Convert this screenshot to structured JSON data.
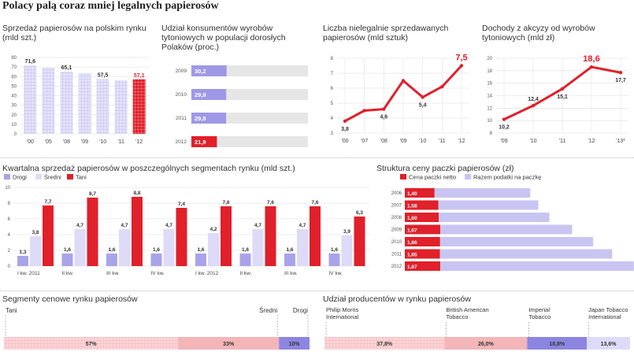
{
  "title": "Polacy palą coraz mniej legalnych papierosów",
  "colors": {
    "red": "#e0202a",
    "lavender": "#c9c5f2",
    "lavender_light": "#dedbf8",
    "grey": "#e6e6e6",
    "dark": "#333333"
  },
  "chart_data": [
    {
      "type": "bar",
      "title": "Sprzedaż papierosów na polskim rynku (mld szt.)",
      "categories": [
        "'00",
        "'05",
        "'08",
        "'09",
        "'10",
        "'11",
        "'12"
      ],
      "tick_labels": [
        "'00",
        "'05",
        "'08",
        "'09",
        "'10",
        "'11",
        "'12"
      ],
      "values": [
        71.6,
        69.1,
        65.1,
        63.5,
        57.5,
        56.0,
        57.1
      ],
      "labels": [
        "71,6",
        "",
        "65,1",
        "",
        "57,5",
        "",
        "57,1"
      ],
      "ylim": [
        0,
        80
      ],
      "yticks": [
        "80",
        "70",
        "60",
        "50",
        "40",
        "30",
        "20",
        "10",
        "0"
      ]
    },
    {
      "type": "bar",
      "title": "Udział konsumentów wyrobów tytoniowych w populacji dorosłych Polaków (proc.)",
      "categories": [
        "2009",
        "2010",
        "2011",
        "2012"
      ],
      "values": [
        30.2,
        29.9,
        29.8,
        21.9
      ],
      "labels": [
        "30,2",
        "29,9",
        "29,8",
        "21,9"
      ],
      "xlim": [
        0,
        100
      ]
    },
    {
      "type": "line",
      "title": "Liczba nielegalnie sprzedawanych papierosów (mld sztuk)",
      "categories": [
        "'00",
        "'07",
        "'08",
        "'09",
        "'10",
        "'11",
        "'12"
      ],
      "values": [
        3.8,
        4.5,
        4.6,
        6.5,
        5.4,
        6.1,
        7.5
      ],
      "labels": [
        "3,8",
        "",
        "4,6",
        "",
        "5,4",
        "",
        "7,5"
      ],
      "ylim": [
        3,
        8
      ],
      "yticks": [
        "8",
        "7",
        "6",
        "5",
        "4",
        "3"
      ]
    },
    {
      "type": "line",
      "title": "Dochody z akcyzy od wyrobów tytoniowych (mld zł)",
      "categories": [
        "'09",
        "'10",
        "'11",
        "'12",
        "'13*"
      ],
      "values": [
        10.2,
        12.4,
        15.1,
        18.6,
        17.7
      ],
      "labels": [
        "10,2",
        "12,4",
        "15,1",
        "18,6",
        "17,7"
      ],
      "ylim": [
        8,
        20
      ],
      "yticks": [
        "20",
        "18",
        "16",
        "14",
        "12",
        "10",
        "8"
      ]
    },
    {
      "type": "bar",
      "title": "Kwartalna sprzedaż papierosów w poszczególnych segmentach rynku (mld szt.)",
      "legend": [
        "Drogi",
        "Średni",
        "Tani"
      ],
      "categories": [
        "I kw. 2011",
        "II kw.",
        "III kw.",
        "IV kw.",
        "I kw. 2012",
        "II kw.",
        "III kw.",
        "IV kw."
      ],
      "series": [
        {
          "name": "Drogi",
          "values": [
            1.3,
            1.6,
            1.6,
            1.6,
            1.6,
            1.6,
            1.6,
            1.6
          ],
          "labels": [
            "1,3",
            "1,6",
            "1,6",
            "1,6",
            "1,6",
            "1,6",
            "1,6",
            "1,6"
          ]
        },
        {
          "name": "Średni",
          "values": [
            3.8,
            4.7,
            4.7,
            4.7,
            4.2,
            4.7,
            4.7,
            3.9
          ],
          "labels": [
            "3,8",
            "4,7",
            "4,7",
            "4,7",
            "4,2",
            "4,7",
            "4,7",
            "3,9"
          ]
        },
        {
          "name": "Tani",
          "values": [
            7.7,
            8.7,
            8.8,
            7.4,
            7.6,
            7.6,
            7.6,
            6.3
          ],
          "labels": [
            "7,7",
            "8,7",
            "8,8",
            "7,4",
            "7,6",
            "7,6",
            "7,6",
            "6,3"
          ]
        }
      ],
      "ylim": [
        0,
        10
      ],
      "yticks": [
        "10",
        "8",
        "6",
        "4",
        "2",
        "0"
      ]
    },
    {
      "type": "bar",
      "title": "Struktura ceny paczki papierosów (zł)",
      "legend": [
        "Cena paczki netto",
        "Razem podatki na paczkę"
      ],
      "categories": [
        "2006",
        "2007",
        "2008",
        "2009",
        "2010",
        "2011",
        "2012"
      ],
      "series": [
        {
          "name": "Cena paczki netto",
          "values": [
            1.4,
            1.58,
            1.6,
            1.67,
            1.66,
            1.65,
            1.67
          ],
          "labels": [
            "1,40",
            "1,58",
            "1,60",
            "1,67",
            "1,66",
            "1,65",
            "1,67"
          ]
        },
        {
          "name": "Razem podatki na paczkę",
          "values": [
            4.5,
            4.7,
            5.2,
            6.2,
            7.2,
            8.1,
            9.1
          ],
          "labels": [
            "",
            "",
            "",
            "",
            "",
            "",
            ""
          ]
        }
      ]
    },
    {
      "type": "bar",
      "title": "Segmenty cenowe rynku papierosów",
      "categories": [
        "Tani",
        "Średni",
        "Drogi"
      ],
      "values": [
        57,
        33,
        10
      ],
      "labels": [
        "57%",
        "33%",
        "10%"
      ]
    },
    {
      "type": "bar",
      "title": "Udział producentów w rynku papierosów",
      "categories": [
        "Philip Morris International",
        "British American Tobacco",
        "Imperial Tobacco",
        "Japan Tobacco International"
      ],
      "display_names": [
        "Philip Morris\nInternational",
        "British American\nTobacco",
        "Imperial\nTobacco",
        "Japan Tobacco\nInternational"
      ],
      "values": [
        37.8,
        26.0,
        18.8,
        13.6
      ],
      "labels": [
        "37,8%",
        "26,0%",
        "18,8%",
        "13,6%"
      ]
    }
  ]
}
